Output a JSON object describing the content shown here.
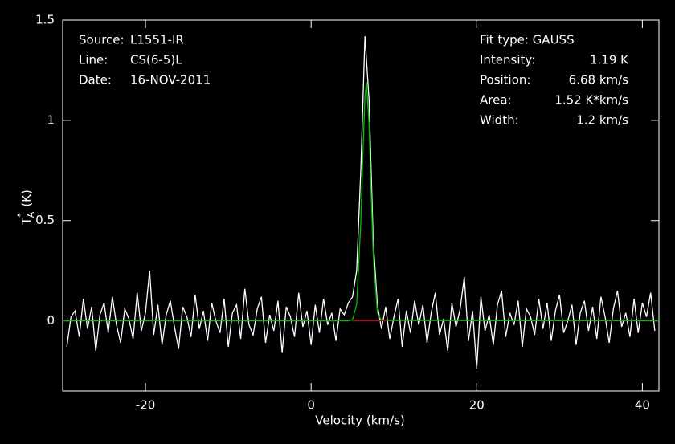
{
  "chart_data": {
    "type": "line",
    "xlabel": "Velocity (km/s)",
    "ylabel": {
      "symbol": "T",
      "sup": "*",
      "sub": "A",
      "unit": "(K)"
    },
    "info_left": [
      {
        "label": "Source:",
        "value": "L1551-IR"
      },
      {
        "label": "Line:",
        "value": "CS(6-5)L"
      },
      {
        "label": "Date:",
        "value": "16-NOV-2011"
      }
    ],
    "fit_type": "Fit type: GAUSS",
    "info_right": [
      {
        "label": "Intensity:",
        "value": "1.19 K"
      },
      {
        "label": "Position:",
        "value": "6.68 km/s"
      },
      {
        "label": "Area:",
        "value": "1.52 K*km/s"
      },
      {
        "label": "Width:",
        "value": "1.2 km/s"
      }
    ],
    "xlim": [
      -30,
      42
    ],
    "ylim": [
      -0.35,
      1.5
    ],
    "xticks": [
      -20,
      0,
      20,
      40
    ],
    "yticks": [
      0,
      0.5,
      1,
      1.5
    ],
    "series": [
      {
        "color": "#ffffff",
        "x": [
          -29.5,
          -29,
          -28.5,
          -28,
          -27.5,
          -27,
          -26.5,
          -26,
          -25.5,
          -25,
          -24.5,
          -24,
          -23.5,
          -23,
          -22.5,
          -22,
          -21.5,
          -21,
          -20.5,
          -20,
          -19.5,
          -19,
          -18.5,
          -18,
          -17.5,
          -17,
          -16.5,
          -16,
          -15.5,
          -15,
          -14.5,
          -14,
          -13.5,
          -13,
          -12.5,
          -12,
          -11.5,
          -11,
          -10.5,
          -10,
          -9.5,
          -9,
          -8.5,
          -8,
          -7.5,
          -7,
          -6.5,
          -6,
          -5.5,
          -5,
          -4.5,
          -4,
          -3.5,
          -3,
          -2.5,
          -2,
          -1.5,
          -1,
          -0.5,
          0,
          0.5,
          1,
          1.5,
          2,
          2.5,
          3,
          3.5,
          4,
          4.5,
          5,
          5.5,
          6,
          6.5,
          7,
          7.5,
          8,
          8.5,
          9,
          9.5,
          10,
          10.5,
          11,
          11.5,
          12,
          12.5,
          13,
          13.5,
          14,
          14.5,
          15,
          15.5,
          16,
          16.5,
          17,
          17.5,
          18,
          18.5,
          19,
          19.5,
          20,
          20.5,
          21,
          21.5,
          22,
          22.5,
          23,
          23.5,
          24,
          24.5,
          25,
          25.5,
          26,
          26.5,
          27,
          27.5,
          28,
          28.5,
          29,
          29.5,
          30,
          30.5,
          31,
          31.5,
          32,
          32.5,
          33,
          33.5,
          34,
          34.5,
          35,
          35.5,
          36,
          36.5,
          37,
          37.5,
          38,
          38.5,
          39,
          39.5,
          40,
          40.5,
          41,
          41.5
        ],
        "values": [
          -0.13,
          0.02,
          0.05,
          -0.08,
          0.11,
          -0.04,
          0.07,
          -0.15,
          0.03,
          0.09,
          -0.06,
          0.12,
          -0.02,
          -0.11,
          0.06,
          0.01,
          -0.09,
          0.14,
          -0.05,
          0.04,
          0.25,
          -0.07,
          0.08,
          -0.12,
          0.03,
          0.1,
          -0.03,
          -0.14,
          0.07,
          0.02,
          -0.08,
          0.13,
          -0.04,
          0.05,
          -0.1,
          0.09,
          0.0,
          -0.06,
          0.11,
          -0.13,
          0.04,
          0.08,
          -0.09,
          0.16,
          -0.02,
          -0.07,
          0.06,
          0.12,
          -0.11,
          0.03,
          -0.05,
          0.1,
          -0.16,
          0.07,
          0.02,
          -0.08,
          0.14,
          -0.03,
          0.05,
          -0.12,
          0.08,
          -0.06,
          0.11,
          -0.02,
          0.04,
          -0.1,
          0.06,
          0.03,
          0.09,
          0.12,
          0.25,
          0.75,
          1.42,
          1.1,
          0.4,
          0.08,
          -0.04,
          0.07,
          -0.09,
          0.02,
          0.11,
          -0.13,
          0.05,
          -0.06,
          0.1,
          -0.02,
          0.08,
          -0.11,
          0.04,
          0.14,
          -0.07,
          0.01,
          -0.15,
          0.09,
          -0.03,
          0.06,
          0.22,
          -0.1,
          0.05,
          -0.24,
          0.12,
          -0.05,
          0.03,
          -0.12,
          0.08,
          0.15,
          -0.08,
          0.04,
          -0.02,
          0.1,
          -0.13,
          0.06,
          0.02,
          -0.07,
          0.11,
          -0.04,
          0.09,
          -0.1,
          0.05,
          0.13,
          -0.06,
          0.0,
          0.08,
          -0.12,
          0.04,
          0.1,
          -0.05,
          0.07,
          -0.09,
          0.12,
          0.02,
          -0.11,
          0.06,
          0.15,
          -0.03,
          0.04,
          -0.08,
          0.11,
          -0.06,
          0.09,
          0.02,
          0.14,
          -0.05
        ]
      },
      {
        "color": "#00c000",
        "x": [
          -30,
          4.5,
          5,
          5.5,
          6,
          6.25,
          6.5,
          6.68,
          7,
          7.25,
          7.5,
          8,
          8.5,
          42
        ],
        "values": [
          0,
          0,
          0.005,
          0.082,
          0.49,
          0.83,
          1.12,
          1.19,
          0.98,
          0.64,
          0.33,
          0.04,
          0.002,
          0
        ]
      },
      {
        "color": "#d00000",
        "x": [
          5,
          9.2
        ],
        "values": [
          0,
          0
        ]
      }
    ]
  }
}
